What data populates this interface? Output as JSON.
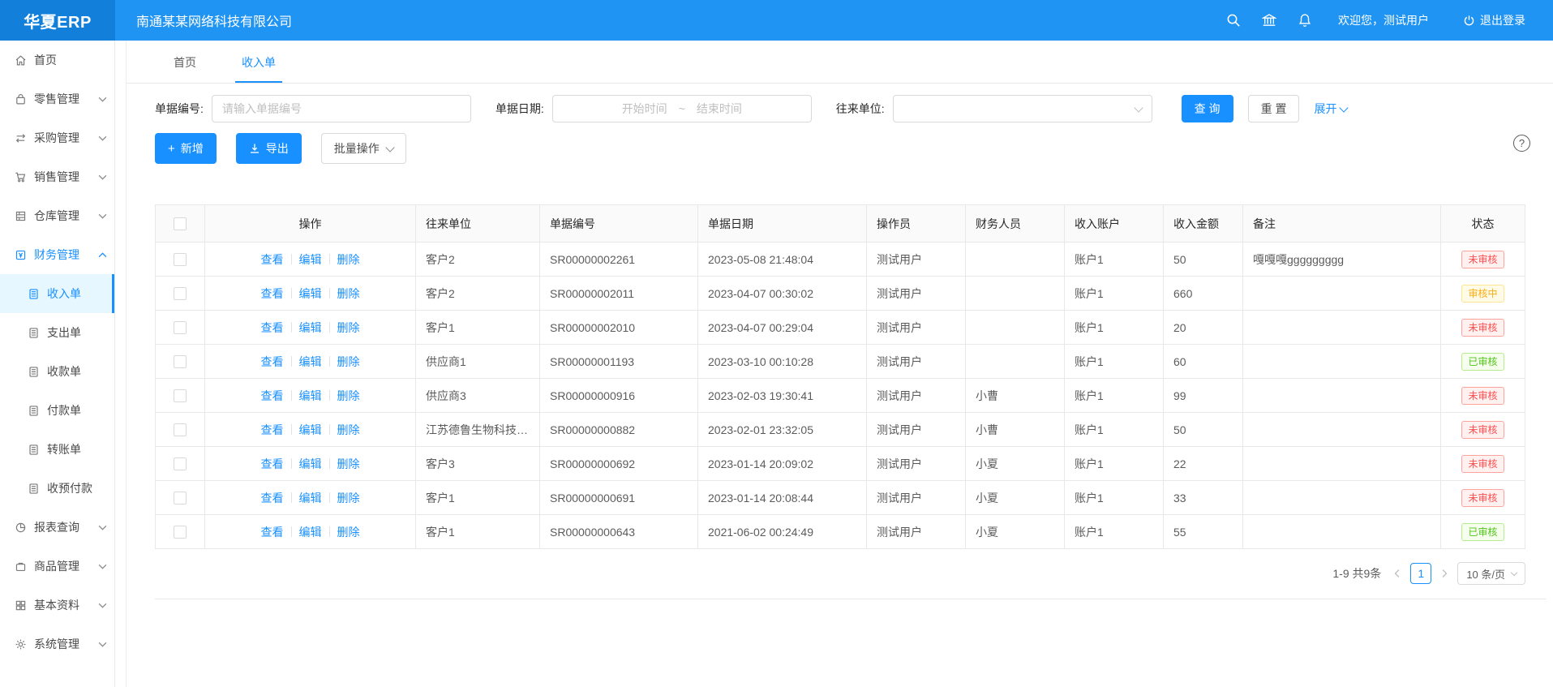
{
  "topbar": {
    "logo": "华夏ERP",
    "company": "南通某某网络科技有限公司",
    "welcome": "欢迎您，测试用户",
    "logout": "退出登录",
    "accent_color": "#1890ff"
  },
  "tabs": [
    {
      "id": "home",
      "label": "首页",
      "active": false
    },
    {
      "id": "income-bill",
      "label": "收入单",
      "active": true
    }
  ],
  "sidebar": {
    "items": [
      {
        "id": "home",
        "label": "首页",
        "icon": "home-icon"
      },
      {
        "id": "retail",
        "label": "零售管理",
        "icon": "retail-icon",
        "chevron": "down"
      },
      {
        "id": "purchase",
        "label": "采购管理",
        "icon": "purchase-icon",
        "chevron": "down"
      },
      {
        "id": "sales",
        "label": "销售管理",
        "icon": "sales-cart-icon",
        "chevron": "down"
      },
      {
        "id": "warehouse",
        "label": "仓库管理",
        "icon": "warehouse-icon",
        "chevron": "down"
      },
      {
        "id": "finance",
        "label": "财务管理",
        "icon": "finance-icon",
        "chevron": "up",
        "active": true,
        "children": [
          {
            "id": "income-bill",
            "label": "收入单",
            "icon": "document-icon",
            "active": true
          },
          {
            "id": "expense-bill",
            "label": "支出单",
            "icon": "document-icon"
          },
          {
            "id": "receipt-bill",
            "label": "收款单",
            "icon": "document-icon"
          },
          {
            "id": "payment-bill",
            "label": "付款单",
            "icon": "document-icon"
          },
          {
            "id": "transfer-bill",
            "label": "转账单",
            "icon": "document-icon"
          },
          {
            "id": "advance-payment",
            "label": "收预付款",
            "icon": "document-icon"
          }
        ]
      },
      {
        "id": "report",
        "label": "报表查询",
        "icon": "report-icon",
        "chevron": "down"
      },
      {
        "id": "goods",
        "label": "商品管理",
        "icon": "goods-icon",
        "chevron": "down"
      },
      {
        "id": "basic-data",
        "label": "基本资料",
        "icon": "basic-data-icon",
        "chevron": "down"
      },
      {
        "id": "system",
        "label": "系统管理",
        "icon": "system-icon",
        "chevron": "down"
      }
    ]
  },
  "filters": {
    "bill_no_label": "单据编号:",
    "bill_no_placeholder": "请输入单据编号",
    "date_label": "单据日期:",
    "date_start_placeholder": "开始时间",
    "date_separator": "~",
    "date_end_placeholder": "结束时间",
    "partner_label": "往来单位:",
    "search_button": "查 询",
    "reset_button": "重 置",
    "expand_link": "展开"
  },
  "toolbar": {
    "add_button": "新增",
    "add_icon_glyph": "+",
    "export_button": "导出",
    "batch_button": "批量操作",
    "help_icon_glyph": "?"
  },
  "table": {
    "columns": [
      "操作",
      "往来单位",
      "单据编号",
      "单据日期",
      "操作员",
      "财务人员",
      "收入账户",
      "收入金额",
      "备注",
      "状态"
    ],
    "action_links": [
      "查看",
      "编辑",
      "删除"
    ],
    "rows": [
      {
        "partner": "客户2",
        "bill_no": "SR00000002261",
        "bill_date": "2023-05-08 21:48:04",
        "operator": "测试用户",
        "finance_staff": "",
        "account": "账户1",
        "amount": "50",
        "remark": "嘎嘎嘎ggggggggg",
        "status": "未审核"
      },
      {
        "partner": "客户2",
        "bill_no": "SR00000002011",
        "bill_date": "2023-04-07 00:30:02",
        "operator": "测试用户",
        "finance_staff": "",
        "account": "账户1",
        "amount": "660",
        "remark": "",
        "status": "审核中"
      },
      {
        "partner": "客户1",
        "bill_no": "SR00000002010",
        "bill_date": "2023-04-07 00:29:04",
        "operator": "测试用户",
        "finance_staff": "",
        "account": "账户1",
        "amount": "20",
        "remark": "",
        "status": "未审核"
      },
      {
        "partner": "供应商1",
        "bill_no": "SR00000001193",
        "bill_date": "2023-03-10 00:10:28",
        "operator": "测试用户",
        "finance_staff": "",
        "account": "账户1",
        "amount": "60",
        "remark": "",
        "status": "已审核"
      },
      {
        "partner": "供应商3",
        "bill_no": "SR00000000916",
        "bill_date": "2023-02-03 19:30:41",
        "operator": "测试用户",
        "finance_staff": "小曹",
        "account": "账户1",
        "amount": "99",
        "remark": "",
        "status": "未审核"
      },
      {
        "partner": "江苏德鲁生物科技有限...",
        "bill_no": "SR00000000882",
        "bill_date": "2023-02-01 23:32:05",
        "operator": "测试用户",
        "finance_staff": "小曹",
        "account": "账户1",
        "amount": "50",
        "remark": "",
        "status": "未审核"
      },
      {
        "partner": "客户3",
        "bill_no": "SR00000000692",
        "bill_date": "2023-01-14 20:09:02",
        "operator": "测试用户",
        "finance_staff": "小夏",
        "account": "账户1",
        "amount": "22",
        "remark": "",
        "status": "未审核"
      },
      {
        "partner": "客户1",
        "bill_no": "SR00000000691",
        "bill_date": "2023-01-14 20:08:44",
        "operator": "测试用户",
        "finance_staff": "小夏",
        "account": "账户1",
        "amount": "33",
        "remark": "",
        "status": "未审核"
      },
      {
        "partner": "客户1",
        "bill_no": "SR00000000643",
        "bill_date": "2021-06-02 00:24:49",
        "operator": "测试用户",
        "finance_staff": "小夏",
        "account": "账户1",
        "amount": "55",
        "remark": "",
        "status": "已审核"
      }
    ],
    "status_styles": {
      "未审核": {
        "color": "#ff4d4f",
        "bg": "#fff1f0",
        "border": "#ffa39e"
      },
      "审核中": {
        "color": "#faad14",
        "bg": "#fffbe6",
        "border": "#ffe58f"
      },
      "已审核": {
        "color": "#52c41a",
        "bg": "#f6ffed",
        "border": "#b7eb8f"
      }
    }
  },
  "pagination": {
    "total_text": "1-9 共9条",
    "current_page": "1",
    "page_size": "10 条/页"
  }
}
